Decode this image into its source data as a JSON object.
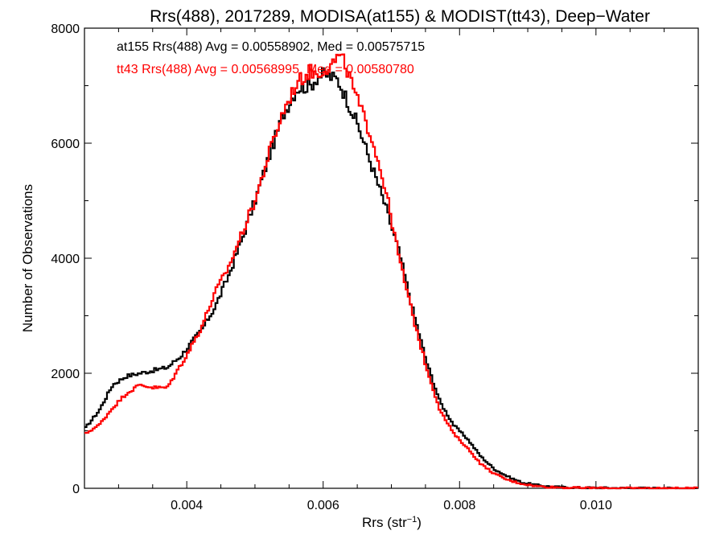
{
  "chart_data": {
    "type": "line",
    "title": "Rrs(488), 2017289, MODISA(at155) & MODIST(tt43), Deep−Water",
    "xlabel_base": "Rrs (str",
    "xlabel_sup": "−1",
    "xlabel_end": ")",
    "ylabel": "Number of Observations",
    "xlim": [
      0.0025,
      0.0115
    ],
    "ylim": [
      0,
      8000
    ],
    "x_ticks": [
      {
        "value": 0.004,
        "label": "0.004"
      },
      {
        "value": 0.006,
        "label": "0.006"
      },
      {
        "value": 0.008,
        "label": "0.008"
      },
      {
        "value": 0.01,
        "label": "0.010"
      }
    ],
    "y_ticks": [
      {
        "value": 0,
        "label": "0"
      },
      {
        "value": 2000,
        "label": "2000"
      },
      {
        "value": 4000,
        "label": "4000"
      },
      {
        "value": 6000,
        "label": "6000"
      },
      {
        "value": 8000,
        "label": "8000"
      }
    ],
    "grid": false,
    "legend_placement": "top-left",
    "series": [
      {
        "legend": "at155 Rrs(488) Avg = 0.00558902, Med = 0.00575715",
        "color": "#000000",
        "x": [
          0.0025,
          0.0027,
          0.0029,
          0.0031,
          0.0033,
          0.0035,
          0.0037,
          0.0039,
          0.004,
          0.0042,
          0.0044,
          0.0046,
          0.0048,
          0.005,
          0.0052,
          0.0054,
          0.0056,
          0.0058,
          0.0059,
          0.006,
          0.0061,
          0.0062,
          0.0063,
          0.0065,
          0.0067,
          0.0069,
          0.0071,
          0.0073,
          0.0075,
          0.0077,
          0.0079,
          0.0081,
          0.0083,
          0.0085,
          0.0087,
          0.0089,
          0.0091,
          0.0093,
          0.0095,
          0.0097,
          0.01,
          0.0103,
          0.0106,
          0.011,
          0.0115
        ],
        "y": [
          1050,
          1350,
          1800,
          1950,
          2000,
          2050,
          2100,
          2300,
          2450,
          2750,
          3150,
          3700,
          4350,
          5050,
          5800,
          6500,
          6950,
          7000,
          7150,
          7200,
          7150,
          7100,
          6850,
          6300,
          5600,
          4900,
          4100,
          3100,
          2200,
          1500,
          1100,
          860,
          550,
          330,
          200,
          100,
          60,
          30,
          20,
          12,
          8,
          5,
          3,
          2,
          1
        ]
      },
      {
        "legend": "tt43 Rrs(488) Avg = 0.00568995, Med = 0.00580780",
        "color": "#ff0000",
        "x": [
          0.0025,
          0.0027,
          0.0029,
          0.0031,
          0.0033,
          0.0035,
          0.0037,
          0.0039,
          0.004,
          0.0042,
          0.0044,
          0.0046,
          0.0048,
          0.005,
          0.0052,
          0.0054,
          0.0056,
          0.0058,
          0.0059,
          0.006,
          0.0061,
          0.0062,
          0.0063,
          0.0065,
          0.0067,
          0.0069,
          0.0071,
          0.0073,
          0.0075,
          0.0077,
          0.0079,
          0.0081,
          0.0083,
          0.0085,
          0.0087,
          0.0089,
          0.0091,
          0.0093,
          0.0095,
          0.0097,
          0.01,
          0.0103,
          0.0106,
          0.011,
          0.0115
        ],
        "y": [
          950,
          1100,
          1400,
          1650,
          1800,
          1750,
          1750,
          2150,
          2350,
          2800,
          3400,
          3850,
          4450,
          5050,
          5850,
          6550,
          7050,
          7250,
          7200,
          7300,
          7350,
          7500,
          7400,
          6700,
          6100,
          5200,
          4000,
          3000,
          2100,
          1350,
          950,
          700,
          420,
          250,
          140,
          80,
          40,
          22,
          14,
          8,
          5,
          3,
          2,
          1,
          1
        ]
      }
    ]
  }
}
